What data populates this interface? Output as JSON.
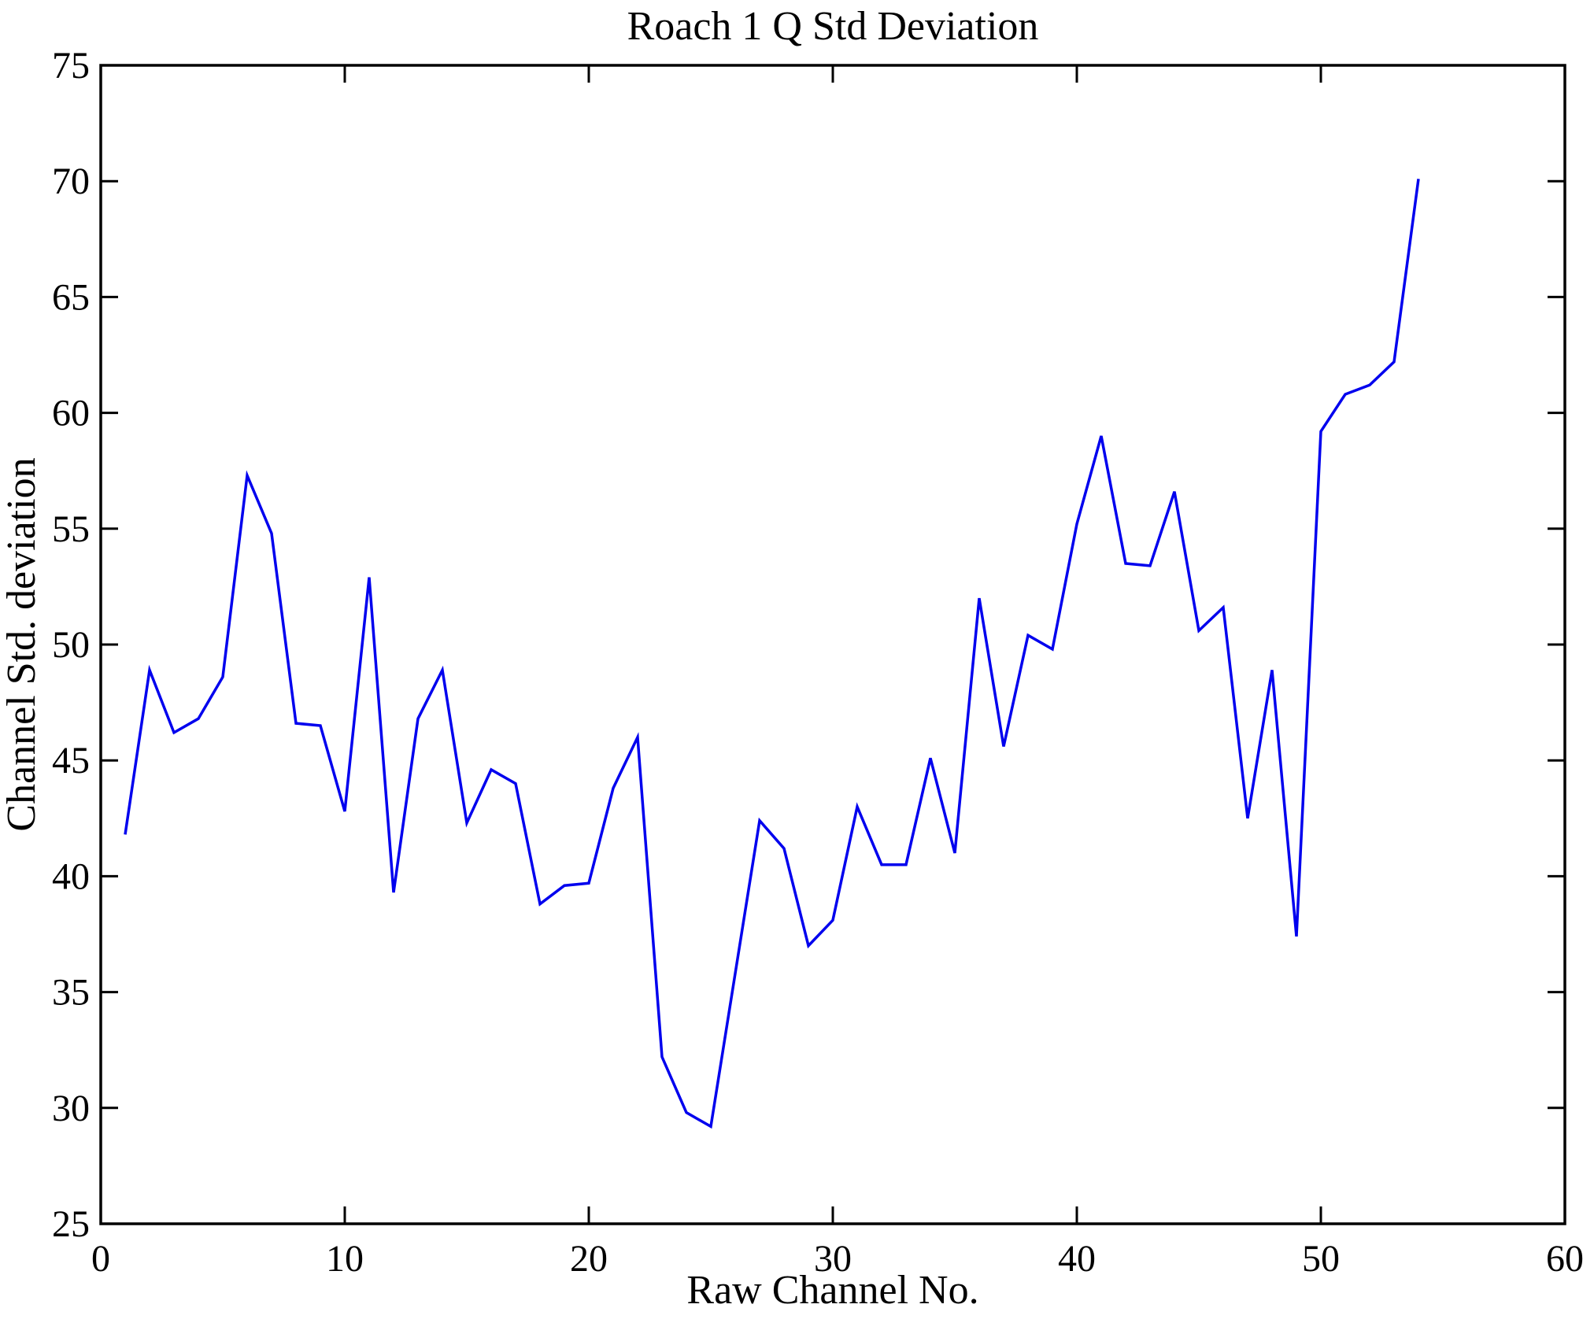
{
  "figure": {
    "background": "#ffffff",
    "axis_color": "#000000"
  },
  "chart_data": {
    "type": "line",
    "title": "Roach 1 Q Std Deviation",
    "xlabel": "Raw Channel No.",
    "ylabel": "Channel Std. deviation",
    "xlim": [
      0,
      60
    ],
    "ylim": [
      25,
      75
    ],
    "xticks": [
      0,
      10,
      20,
      30,
      40,
      50,
      60
    ],
    "yticks": [
      25,
      30,
      35,
      40,
      45,
      50,
      55,
      60,
      65,
      70,
      75
    ],
    "grid": false,
    "legend": "none",
    "line_color": "#0000ee",
    "x": [
      1,
      2,
      3,
      4,
      5,
      6,
      7,
      8,
      9,
      10,
      11,
      12,
      13,
      14,
      15,
      16,
      17,
      18,
      19,
      20,
      21,
      22,
      23,
      24,
      25,
      26,
      27,
      28,
      29,
      30,
      31,
      32,
      33,
      34,
      35,
      36,
      37,
      38,
      39,
      40,
      41,
      42,
      43,
      44,
      45,
      46,
      47,
      48,
      49,
      50,
      51,
      52,
      53,
      54
    ],
    "values": [
      41.8,
      48.9,
      46.2,
      46.8,
      48.6,
      57.3,
      54.8,
      46.6,
      46.5,
      42.8,
      52.9,
      39.3,
      46.8,
      48.9,
      42.3,
      44.6,
      44.0,
      38.8,
      39.6,
      39.7,
      43.8,
      46.0,
      32.2,
      29.8,
      29.2,
      35.8,
      42.4,
      41.2,
      37.0,
      38.1,
      43.0,
      40.5,
      40.5,
      45.1,
      41.0,
      52.0,
      45.6,
      50.4,
      49.8,
      55.2,
      59.0,
      53.5,
      53.4,
      56.6,
      50.6,
      51.6,
      42.5,
      48.9,
      37.4,
      59.2,
      60.8,
      61.2,
      62.2,
      70.1
    ]
  }
}
